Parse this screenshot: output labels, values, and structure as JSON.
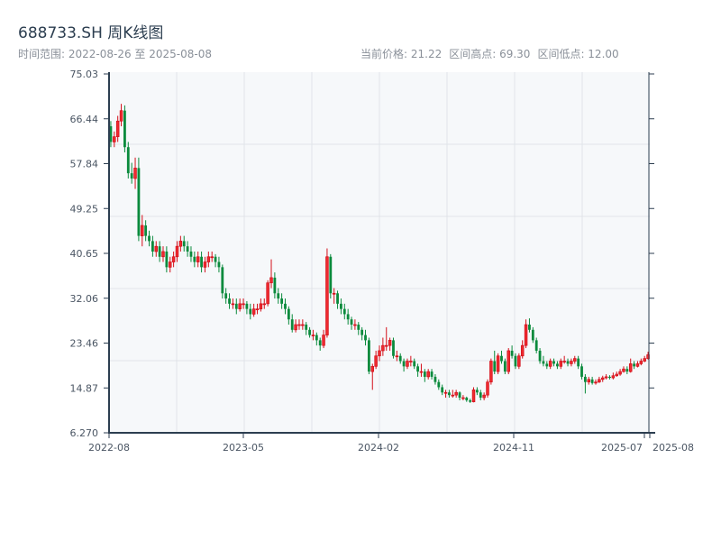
{
  "header": {
    "title": "688733.SH 周K线图",
    "range_label": "时间范围: 2022-08-26 至 2025-08-08",
    "current_price": "当前价格: 21.22",
    "range_high": "区间高点: 69.30",
    "range_low": "区间低点: 12.00"
  },
  "chart_data": {
    "type": "candlestick",
    "title": "688733.SH 周K线图",
    "frequency": "weekly",
    "x_start": "2022-08-26",
    "x_end": "2025-08-08",
    "ylim": [
      6.27,
      75.03
    ],
    "yticks": [
      "75.03",
      "66.44",
      "57.84",
      "49.25",
      "40.65",
      "32.06",
      "23.46",
      "14.87",
      "6.270"
    ],
    "xticks": [
      "2022-08",
      "2023-05",
      "2024-02",
      "2024-11",
      "2025-07",
      "2025-08"
    ],
    "grid": true,
    "colors": {
      "up": "#d40f1a",
      "down": "#0a8a3c",
      "background": "#f6f8fa",
      "axis": "#2c3e50"
    },
    "ohlc_columns": [
      "open",
      "high",
      "low",
      "close"
    ],
    "ohlc": [
      [
        65,
        66,
        61,
        62
      ],
      [
        62,
        64,
        61,
        63
      ],
      [
        63,
        67,
        62,
        66
      ],
      [
        66,
        69.3,
        65,
        68
      ],
      [
        68,
        69,
        60,
        61
      ],
      [
        61,
        62,
        55,
        56
      ],
      [
        56,
        58,
        54,
        55
      ],
      [
        55,
        59,
        53,
        57
      ],
      [
        57,
        59,
        43,
        44
      ],
      [
        44,
        48,
        42,
        46
      ],
      [
        46,
        47,
        43,
        44
      ],
      [
        44,
        45,
        42,
        43
      ],
      [
        43,
        44,
        40,
        41
      ],
      [
        41,
        43,
        40,
        42
      ],
      [
        42,
        43,
        39,
        40
      ],
      [
        40,
        42,
        39,
        41
      ],
      [
        41,
        42,
        37,
        38
      ],
      [
        38,
        40,
        37,
        39
      ],
      [
        39,
        41,
        38,
        40
      ],
      [
        40,
        43,
        39,
        42
      ],
      [
        42,
        44,
        41,
        43
      ],
      [
        43,
        44,
        41,
        42
      ],
      [
        42,
        43,
        40,
        41
      ],
      [
        41,
        42,
        39,
        40
      ],
      [
        40,
        41,
        38,
        39
      ],
      [
        39,
        41,
        38,
        40
      ],
      [
        40,
        41,
        37,
        38
      ],
      [
        38,
        40,
        37,
        39
      ],
      [
        39,
        41,
        38,
        40
      ],
      [
        40,
        41,
        39,
        40
      ],
      [
        40,
        40.5,
        38,
        39
      ],
      [
        39,
        40,
        37,
        38
      ],
      [
        38,
        38.5,
        32,
        33
      ],
      [
        33,
        34,
        31,
        32
      ],
      [
        32,
        33,
        30,
        31
      ],
      [
        31,
        32,
        30,
        31
      ],
      [
        31,
        32,
        29,
        30
      ],
      [
        30,
        32,
        29.5,
        31
      ],
      [
        31,
        32,
        30,
        31
      ],
      [
        31,
        31.5,
        29,
        30
      ],
      [
        30,
        31,
        28,
        29
      ],
      [
        29,
        31,
        28.5,
        30
      ],
      [
        30,
        31,
        29,
        30
      ],
      [
        30,
        32,
        29.5,
        31
      ],
      [
        31,
        32,
        30,
        31
      ],
      [
        31,
        35.5,
        30.5,
        35
      ],
      [
        35,
        39.5,
        34,
        36
      ],
      [
        36,
        37,
        32,
        33
      ],
      [
        33,
        34,
        31,
        32
      ],
      [
        32,
        33,
        30,
        31
      ],
      [
        31,
        32,
        29,
        30
      ],
      [
        30,
        30.5,
        27,
        28
      ],
      [
        28,
        29,
        25.5,
        26
      ],
      [
        26,
        28,
        25.5,
        27
      ],
      [
        27,
        28,
        26,
        27
      ],
      [
        27,
        28,
        26,
        27
      ],
      [
        27,
        27.5,
        25,
        26
      ],
      [
        26,
        26.5,
        24.5,
        25
      ],
      [
        25,
        26,
        24,
        25
      ],
      [
        25,
        25.5,
        23,
        24
      ],
      [
        24,
        24.5,
        22,
        23
      ],
      [
        23,
        26,
        22.5,
        25
      ],
      [
        25,
        41.6,
        24.5,
        40
      ],
      [
        40,
        40.5,
        32,
        33
      ],
      [
        33,
        34,
        31,
        33
      ],
      [
        33,
        33.5,
        30,
        31
      ],
      [
        31,
        32,
        29,
        30
      ],
      [
        30,
        31,
        28,
        29
      ],
      [
        29,
        30,
        27,
        28
      ],
      [
        28,
        28.5,
        26,
        27
      ],
      [
        27,
        28,
        26,
        27
      ],
      [
        27,
        27.5,
        25,
        26
      ],
      [
        26,
        26.5,
        24,
        25
      ],
      [
        25,
        26,
        23,
        24
      ],
      [
        24,
        24.5,
        17.5,
        18
      ],
      [
        18,
        19.5,
        14.5,
        19
      ],
      [
        19,
        22,
        18.5,
        21
      ],
      [
        21,
        23,
        20,
        22
      ],
      [
        22,
        24.5,
        21,
        23
      ],
      [
        23,
        26.5,
        22,
        23
      ],
      [
        23,
        24.5,
        22,
        24
      ],
      [
        24,
        24.5,
        20.5,
        21
      ],
      [
        21,
        22,
        20,
        21
      ],
      [
        21,
        21.5,
        19.5,
        20
      ],
      [
        20,
        20.5,
        18,
        19
      ],
      [
        19,
        20.5,
        18.5,
        20
      ],
      [
        20,
        21,
        19,
        20
      ],
      [
        20,
        20.5,
        18.5,
        19
      ],
      [
        19,
        19.5,
        17,
        18
      ],
      [
        18,
        19.5,
        17,
        18
      ],
      [
        18,
        18.5,
        16,
        17
      ],
      [
        17,
        18.5,
        16.5,
        18
      ],
      [
        18,
        18.5,
        16.5,
        17
      ],
      [
        17,
        17.5,
        15.5,
        16
      ],
      [
        16,
        16.5,
        14.5,
        15
      ],
      [
        15,
        15.5,
        13.5,
        14
      ],
      [
        14,
        14.5,
        13,
        14
      ],
      [
        14,
        14.5,
        13,
        13.5
      ],
      [
        13.5,
        14.5,
        13,
        13.5
      ],
      [
        13.5,
        14.5,
        13,
        14
      ],
      [
        14,
        14.2,
        12.5,
        13
      ],
      [
        13,
        13.5,
        12.5,
        13
      ],
      [
        13,
        13.2,
        12.2,
        12.5
      ],
      [
        12.5,
        12.8,
        12.0,
        12.2
      ],
      [
        12.2,
        15,
        12.1,
        14.5
      ],
      [
        14.5,
        15,
        13.5,
        14
      ],
      [
        14,
        14.5,
        12.5,
        13
      ],
      [
        13,
        14,
        12.5,
        13.5
      ],
      [
        13.5,
        16.5,
        13,
        16
      ],
      [
        16,
        20.5,
        15.5,
        20
      ],
      [
        20,
        22,
        17.5,
        18
      ],
      [
        18,
        21.5,
        17.5,
        21
      ],
      [
        21,
        22,
        19.5,
        20
      ],
      [
        20,
        20.5,
        17.5,
        18
      ],
      [
        18,
        22.5,
        17.5,
        22
      ],
      [
        22,
        23,
        20.5,
        21
      ],
      [
        21,
        21.5,
        18.5,
        19
      ],
      [
        19,
        21.5,
        18.5,
        21
      ],
      [
        21,
        24,
        20.5,
        23
      ],
      [
        23,
        28,
        22.5,
        27
      ],
      [
        27,
        28.2,
        25.5,
        26
      ],
      [
        26,
        26.5,
        23.5,
        24
      ],
      [
        24,
        24.5,
        21.5,
        22
      ],
      [
        22,
        22.5,
        19.5,
        20
      ],
      [
        20,
        21,
        19,
        19.5
      ],
      [
        19.5,
        20,
        18.5,
        19
      ],
      [
        19,
        20.5,
        18.5,
        20
      ],
      [
        20,
        20.5,
        19,
        19.5
      ],
      [
        19.5,
        20,
        18.5,
        19
      ],
      [
        19,
        20.5,
        18.5,
        20
      ],
      [
        20,
        21,
        19.5,
        20
      ],
      [
        20,
        20.5,
        19,
        19.5
      ],
      [
        19.5,
        20.5,
        19,
        20
      ],
      [
        20,
        21,
        19.5,
        20.5
      ],
      [
        20.5,
        21,
        18.5,
        19
      ],
      [
        19,
        19.5,
        16.5,
        17
      ],
      [
        17,
        17.5,
        13.8,
        16
      ],
      [
        16,
        17,
        15.5,
        16.5
      ],
      [
        16.5,
        17,
        15.5,
        15.8
      ],
      [
        15.8,
        16.5,
        15.5,
        16
      ],
      [
        16,
        17,
        15.8,
        16.5
      ],
      [
        16.5,
        17.2,
        16,
        16.8
      ],
      [
        16.8,
        17.5,
        16.5,
        17
      ],
      [
        17,
        17.3,
        16.5,
        16.8
      ],
      [
        16.8,
        17.8,
        16.5,
        17.2
      ],
      [
        17.2,
        18,
        17,
        17.5
      ],
      [
        17.5,
        18.5,
        17.2,
        18
      ],
      [
        18,
        19,
        17.8,
        18.5
      ],
      [
        18.5,
        19,
        17.5,
        18
      ],
      [
        18,
        20.5,
        17.8,
        19.5
      ],
      [
        19.5,
        20,
        18.5,
        19
      ],
      [
        19,
        20,
        18.8,
        19.5
      ],
      [
        19.5,
        20.5,
        19.2,
        20
      ],
      [
        20,
        21,
        19.8,
        20.5
      ],
      [
        20.5,
        21.8,
        20.3,
        21.22
      ]
    ]
  }
}
